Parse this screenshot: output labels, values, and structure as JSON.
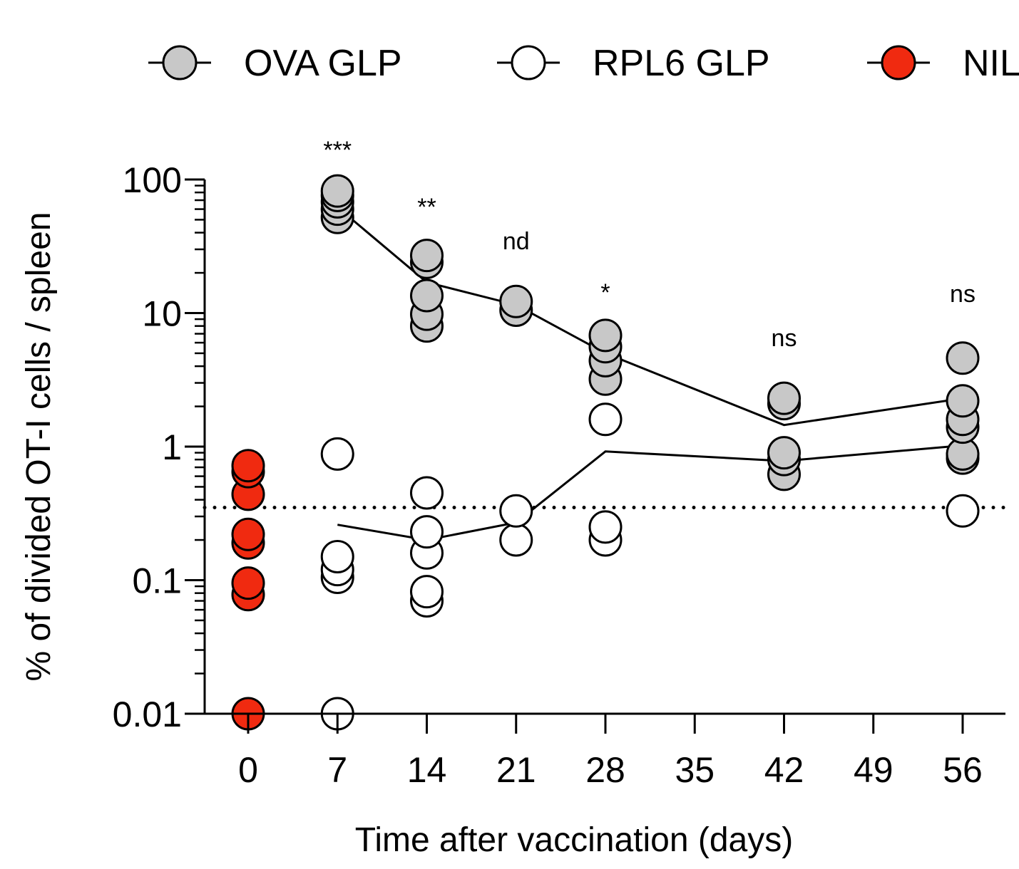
{
  "chart_data": {
    "type": "scatter",
    "title": "",
    "xlabel": "Time after vaccination (days)",
    "ylabel": "% of divided OT-I cells / spleen",
    "yscale": "log",
    "ylim": [
      0.01,
      100
    ],
    "xlim": [
      -6,
      59
    ],
    "xticks": [
      0,
      7,
      14,
      21,
      28,
      35,
      42,
      49,
      56
    ],
    "xtick_labels": [
      "0",
      "7",
      "14",
      "21",
      "28",
      "35",
      "42",
      "49",
      "56"
    ],
    "yticks": [
      0.01,
      0.1,
      1,
      10,
      100
    ],
    "ytick_labels": [
      "0.01",
      "0.1",
      "1",
      "10",
      "100"
    ],
    "detection_limit": 0.35,
    "legend": {
      "placement": "top",
      "entries": [
        {
          "label": "OVA GLP",
          "color": "#c8c8c8"
        },
        {
          "label": "RPL6 GLP",
          "color": "#ffffff"
        },
        {
          "label": "NIL",
          "color": "#f02a10"
        }
      ]
    },
    "series": [
      {
        "name": "OVA GLP",
        "color": "#c8c8c8",
        "points": [
          {
            "x": 7,
            "y": 52
          },
          {
            "x": 7,
            "y": 60
          },
          {
            "x": 7,
            "y": 68
          },
          {
            "x": 7,
            "y": 76
          },
          {
            "x": 7,
            "y": 82
          },
          {
            "x": 14,
            "y": 8
          },
          {
            "x": 14,
            "y": 9.8
          },
          {
            "x": 14,
            "y": 13.5
          },
          {
            "x": 14,
            "y": 24
          },
          {
            "x": 14,
            "y": 27
          },
          {
            "x": 21,
            "y": 10.5
          },
          {
            "x": 21,
            "y": 12.2
          },
          {
            "x": 28,
            "y": 3.2
          },
          {
            "x": 28,
            "y": 4.4
          },
          {
            "x": 28,
            "y": 5.6
          },
          {
            "x": 28,
            "y": 6.8
          },
          {
            "x": 42,
            "y": 0.62
          },
          {
            "x": 42,
            "y": 0.8
          },
          {
            "x": 42,
            "y": 0.9
          },
          {
            "x": 42,
            "y": 2.1
          },
          {
            "x": 42,
            "y": 2.3
          },
          {
            "x": 56,
            "y": 0.82
          },
          {
            "x": 56,
            "y": 0.88
          },
          {
            "x": 56,
            "y": 1.4
          },
          {
            "x": 56,
            "y": 1.6
          },
          {
            "x": 56,
            "y": 2.2
          },
          {
            "x": 56,
            "y": 4.6
          }
        ],
        "mean_line": [
          {
            "x": 7,
            "y": 62
          },
          {
            "x": 14,
            "y": 17
          },
          {
            "x": 21,
            "y": 11.5
          },
          {
            "x": 28,
            "y": 5.0
          },
          {
            "x": 42,
            "y": 1.45
          },
          {
            "x": 56,
            "y": 2.3
          }
        ]
      },
      {
        "name": "RPL6 GLP",
        "color": "#ffffff",
        "points": [
          {
            "x": 7,
            "y": 0.01
          },
          {
            "x": 7,
            "y": 0.105
          },
          {
            "x": 7,
            "y": 0.12
          },
          {
            "x": 7,
            "y": 0.15
          },
          {
            "x": 7,
            "y": 0.88
          },
          {
            "x": 14,
            "y": 0.07
          },
          {
            "x": 14,
            "y": 0.082
          },
          {
            "x": 14,
            "y": 0.16
          },
          {
            "x": 14,
            "y": 0.23
          },
          {
            "x": 14,
            "y": 0.45
          },
          {
            "x": 21,
            "y": 0.2
          },
          {
            "x": 21,
            "y": 0.33
          },
          {
            "x": 28,
            "y": 0.2
          },
          {
            "x": 28,
            "y": 0.25
          },
          {
            "x": 28,
            "y": 1.6
          },
          {
            "x": 56,
            "y": 0.33
          }
        ],
        "mean_line": [
          {
            "x": 7,
            "y": 0.26
          },
          {
            "x": 14,
            "y": 0.2
          },
          {
            "x": 21,
            "y": 0.27
          },
          {
            "x": 28,
            "y": 0.92
          },
          {
            "x": 42,
            "y": 0.78
          },
          {
            "x": 56,
            "y": 1.02
          }
        ]
      },
      {
        "name": "NIL",
        "color": "#f02a10",
        "points": [
          {
            "x": 0,
            "y": 0.01
          },
          {
            "x": 0,
            "y": 0.078
          },
          {
            "x": 0,
            "y": 0.095
          },
          {
            "x": 0,
            "y": 0.19
          },
          {
            "x": 0,
            "y": 0.22
          },
          {
            "x": 0,
            "y": 0.44
          },
          {
            "x": 0,
            "y": 0.65
          },
          {
            "x": 0,
            "y": 0.72
          }
        ],
        "mean_line": []
      }
    ],
    "annotations": [
      {
        "x": 7,
        "text": "***"
      },
      {
        "x": 14,
        "text": "**"
      },
      {
        "x": 21,
        "text": "nd"
      },
      {
        "x": 28,
        "text": "*"
      },
      {
        "x": 42,
        "text": "ns"
      },
      {
        "x": 56,
        "text": "ns"
      }
    ]
  }
}
